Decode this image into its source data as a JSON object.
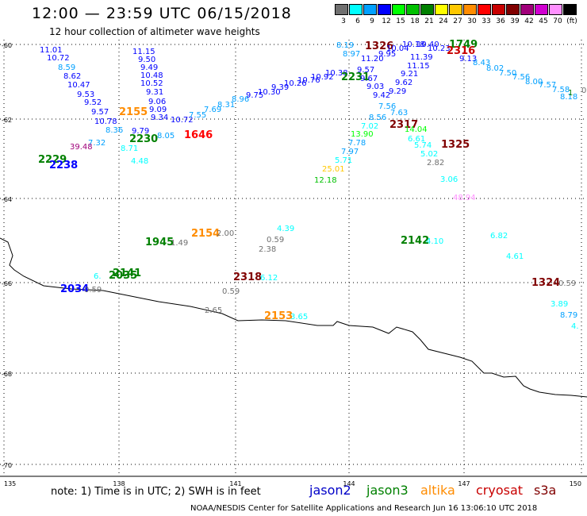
{
  "header": {
    "title": "12:00 — 23:59 UTC 06/15/2018",
    "subtitle": "12 hour collection of altimeter wave heights"
  },
  "legend": {
    "bins": [
      {
        "label": "3",
        "color": "#707070"
      },
      {
        "label": "6",
        "color": "#00ffff"
      },
      {
        "label": "9",
        "color": "#00a0ff"
      },
      {
        "label": "12",
        "color": "#0000ff"
      },
      {
        "label": "15",
        "color": "#00ff00"
      },
      {
        "label": "18",
        "color": "#00c000"
      },
      {
        "label": "21",
        "color": "#008000"
      },
      {
        "label": "24",
        "color": "#ffff00"
      },
      {
        "label": "27",
        "color": "#ffc800"
      },
      {
        "label": "30",
        "color": "#ff8c00"
      },
      {
        "label": "33",
        "color": "#ff0000"
      },
      {
        "label": "36",
        "color": "#c80000"
      },
      {
        "label": "39",
        "color": "#800000"
      },
      {
        "label": "42",
        "color": "#a0007a"
      },
      {
        "label": "45",
        "color": "#d000d0"
      },
      {
        "label": "70",
        "color": "#ff90ff"
      },
      {
        "label": "(ft)",
        "color": "#000000"
      }
    ]
  },
  "axes": {
    "lat_labels": [
      "-60",
      "-62",
      "-64",
      "-66",
      "-68",
      "-70"
    ],
    "lon_labels": [
      "135",
      "138",
      "141",
      "144",
      "147",
      "150"
    ]
  },
  "missions": [
    {
      "name": "jason2",
      "color": "#0000c8"
    },
    {
      "name": "jason3",
      "color": "#008000"
    },
    {
      "name": "altika",
      "color": "#ff8c00"
    },
    {
      "name": "cryosat",
      "color": "#c80000"
    },
    {
      "name": "s3a",
      "color": "#800000"
    }
  ],
  "footer": {
    "note": "note: 1) Time is in UTC; 2) SWH is in feet",
    "credit": "NOAA/NESDIS Center for Satellite Applications and Research   Jun 16 13:06:10 UTC 2018"
  },
  "observations": [
    {
      "text": "11.01",
      "color": "#0000ff"
    },
    {
      "text": "10.72",
      "color": "#0000ff"
    },
    {
      "text": "8.59",
      "color": "#00a0ff"
    },
    {
      "text": "8.62",
      "color": "#0000ff"
    },
    {
      "text": "10.47",
      "color": "#0000ff"
    },
    {
      "text": "9.53",
      "color": "#0000ff"
    },
    {
      "text": "9.52",
      "color": "#0000ff"
    },
    {
      "text": "9.57",
      "color": "#0000ff"
    },
    {
      "text": "10.78",
      "color": "#0000ff"
    },
    {
      "text": "2155",
      "color": "#ff8c00"
    },
    {
      "text": "11.15",
      "color": "#0000ff"
    },
    {
      "text": "9.50",
      "color": "#0000ff"
    },
    {
      "text": "9.49",
      "color": "#0000ff"
    },
    {
      "text": "10.48",
      "color": "#0000ff"
    },
    {
      "text": "10.52",
      "color": "#0000ff"
    },
    {
      "text": "9.31",
      "color": "#0000ff"
    },
    {
      "text": "9.06",
      "color": "#0000ff"
    },
    {
      "text": "9.09",
      "color": "#0000ff"
    },
    {
      "text": "9.34",
      "color": "#0000ff"
    },
    {
      "text": "10.72",
      "color": "#0000ff"
    },
    {
      "text": "8.36",
      "color": "#00a0ff"
    },
    {
      "text": "7.32",
      "color": "#00a0ff"
    },
    {
      "text": "9.79",
      "color": "#0000ff"
    },
    {
      "text": "2230",
      "color": "#008000"
    },
    {
      "text": "8.71",
      "color": "#00ffff"
    },
    {
      "text": "8.05",
      "color": "#00a0ff"
    },
    {
      "text": "1646",
      "color": "#ff0000"
    },
    {
      "text": "4.48",
      "color": "#00ffff"
    },
    {
      "text": "39.48",
      "color": "#a0007a"
    },
    {
      "text": "2229",
      "color": "#008000"
    },
    {
      "text": "2238",
      "color": "#0000ff"
    },
    {
      "text": "7.55",
      "color": "#00a0ff"
    },
    {
      "text": "7.69",
      "color": "#00a0ff"
    },
    {
      "text": "8.31",
      "color": "#00a0ff"
    },
    {
      "text": "8.96",
      "color": "#00a0ff"
    },
    {
      "text": "9.75",
      "color": "#0000ff"
    },
    {
      "text": "10.30",
      "color": "#0000ff"
    },
    {
      "text": "9.39",
      "color": "#0000ff"
    },
    {
      "text": "10.26",
      "color": "#0000ff"
    },
    {
      "text": "10.76",
      "color": "#0000ff"
    },
    {
      "text": "10.92",
      "color": "#0000ff"
    },
    {
      "text": "10.38",
      "color": "#0000ff"
    },
    {
      "text": "2231",
      "color": "#008000"
    },
    {
      "text": "8.19",
      "color": "#00a0ff"
    },
    {
      "text": "8.97",
      "color": "#00a0ff"
    },
    {
      "text": "1326",
      "color": "#800000"
    },
    {
      "text": "11.20",
      "color": "#0000ff"
    },
    {
      "text": "10.04",
      "color": "#0000ff"
    },
    {
      "text": "9.95",
      "color": "#0000ff"
    },
    {
      "text": "10.18",
      "color": "#0000ff"
    },
    {
      "text": "10.40",
      "color": "#0000ff"
    },
    {
      "text": "1749",
      "color": "#008000"
    },
    {
      "text": "10.23",
      "color": "#0000ff"
    },
    {
      "text": "2316",
      "color": "#c80000"
    },
    {
      "text": "11.39",
      "color": "#0000ff"
    },
    {
      "text": "9.13",
      "color": "#0000ff"
    },
    {
      "text": "11.15",
      "color": "#0000ff"
    },
    {
      "text": "9.57",
      "color": "#0000ff"
    },
    {
      "text": "9.67",
      "color": "#0000ff"
    },
    {
      "text": "9.03",
      "color": "#0000ff"
    },
    {
      "text": "9.21",
      "color": "#0000ff"
    },
    {
      "text": "9.62",
      "color": "#0000ff"
    },
    {
      "text": "9.29",
      "color": "#0000ff"
    },
    {
      "text": "9.42",
      "color": "#0000ff"
    },
    {
      "text": "7.56",
      "color": "#00a0ff"
    },
    {
      "text": "7.63",
      "color": "#00a0ff"
    },
    {
      "text": "8.56",
      "color": "#00a0ff"
    },
    {
      "text": "7.02",
      "color": "#00ffff"
    },
    {
      "text": "2317",
      "color": "#800000"
    },
    {
      "text": "13.90",
      "color": "#00ff00"
    },
    {
      "text": "14.04",
      "color": "#00ff00"
    },
    {
      "text": "7.78",
      "color": "#00a0ff"
    },
    {
      "text": "7.97",
      "color": "#00a0ff"
    },
    {
      "text": "5.71",
      "color": "#00ffff"
    },
    {
      "text": "6.61",
      "color": "#00ffff"
    },
    {
      "text": "5.74",
      "color": "#00ffff"
    },
    {
      "text": "5.02",
      "color": "#00ffff"
    },
    {
      "text": "1325",
      "color": "#800000"
    },
    {
      "text": "25.01",
      "color": "#ffc800"
    },
    {
      "text": "12.18",
      "color": "#00c000"
    },
    {
      "text": "2.82",
      "color": "#707070"
    },
    {
      "text": "3.06",
      "color": "#00ffff"
    },
    {
      "text": "48.94",
      "color": "#ff90ff"
    },
    {
      "text": "8.43",
      "color": "#00a0ff"
    },
    {
      "text": "8.02",
      "color": "#00a0ff"
    },
    {
      "text": "7.50",
      "color": "#00a0ff"
    },
    {
      "text": "7.56",
      "color": "#00a0ff"
    },
    {
      "text": "8.00",
      "color": "#00a0ff"
    },
    {
      "text": "7.57",
      "color": "#00a0ff"
    },
    {
      "text": "7.58",
      "color": "#00a0ff"
    },
    {
      "text": "8.18",
      "color": "#00a0ff"
    },
    {
      "text": "1",
      "color": "#008000"
    },
    {
      "text": "0.59",
      "color": "#707070"
    },
    {
      "text": "1945",
      "color": "#008000"
    },
    {
      "text": "1.49",
      "color": "#707070"
    },
    {
      "text": "2154",
      "color": "#ff8c00"
    },
    {
      "text": "2.00",
      "color": "#707070"
    },
    {
      "text": "4.39",
      "color": "#00ffff"
    },
    {
      "text": "0.59",
      "color": "#707070"
    },
    {
      "text": "2.38",
      "color": "#707070"
    },
    {
      "text": "2142",
      "color": "#008000"
    },
    {
      "text": "4.10",
      "color": "#00ffff"
    },
    {
      "text": "6.82",
      "color": "#00ffff"
    },
    {
      "text": "4.61",
      "color": "#00ffff"
    },
    {
      "text": "6.",
      "color": "#00ffff"
    },
    {
      "text": "2141",
      "color": "#008000"
    },
    {
      "text": "2035",
      "color": "#008000"
    },
    {
      "text": "2034",
      "color": "#0000ff"
    },
    {
      "text": "0.59",
      "color": "#707070"
    },
    {
      "text": "2318",
      "color": "#800000"
    },
    {
      "text": "6.12",
      "color": "#00ffff"
    },
    {
      "text": "0.59",
      "color": "#707070"
    },
    {
      "text": "1324",
      "color": "#800000"
    },
    {
      "text": "0.59",
      "color": "#707070"
    },
    {
      "text": "2.65",
      "color": "#707070"
    },
    {
      "text": "2153",
      "color": "#ff8c00"
    },
    {
      "text": "3.65",
      "color": "#00ffff"
    },
    {
      "text": "3.89",
      "color": "#00ffff"
    },
    {
      "text": "8.79",
      "color": "#00a0ff"
    },
    {
      "text": "4.",
      "color": "#00ffff"
    }
  ]
}
